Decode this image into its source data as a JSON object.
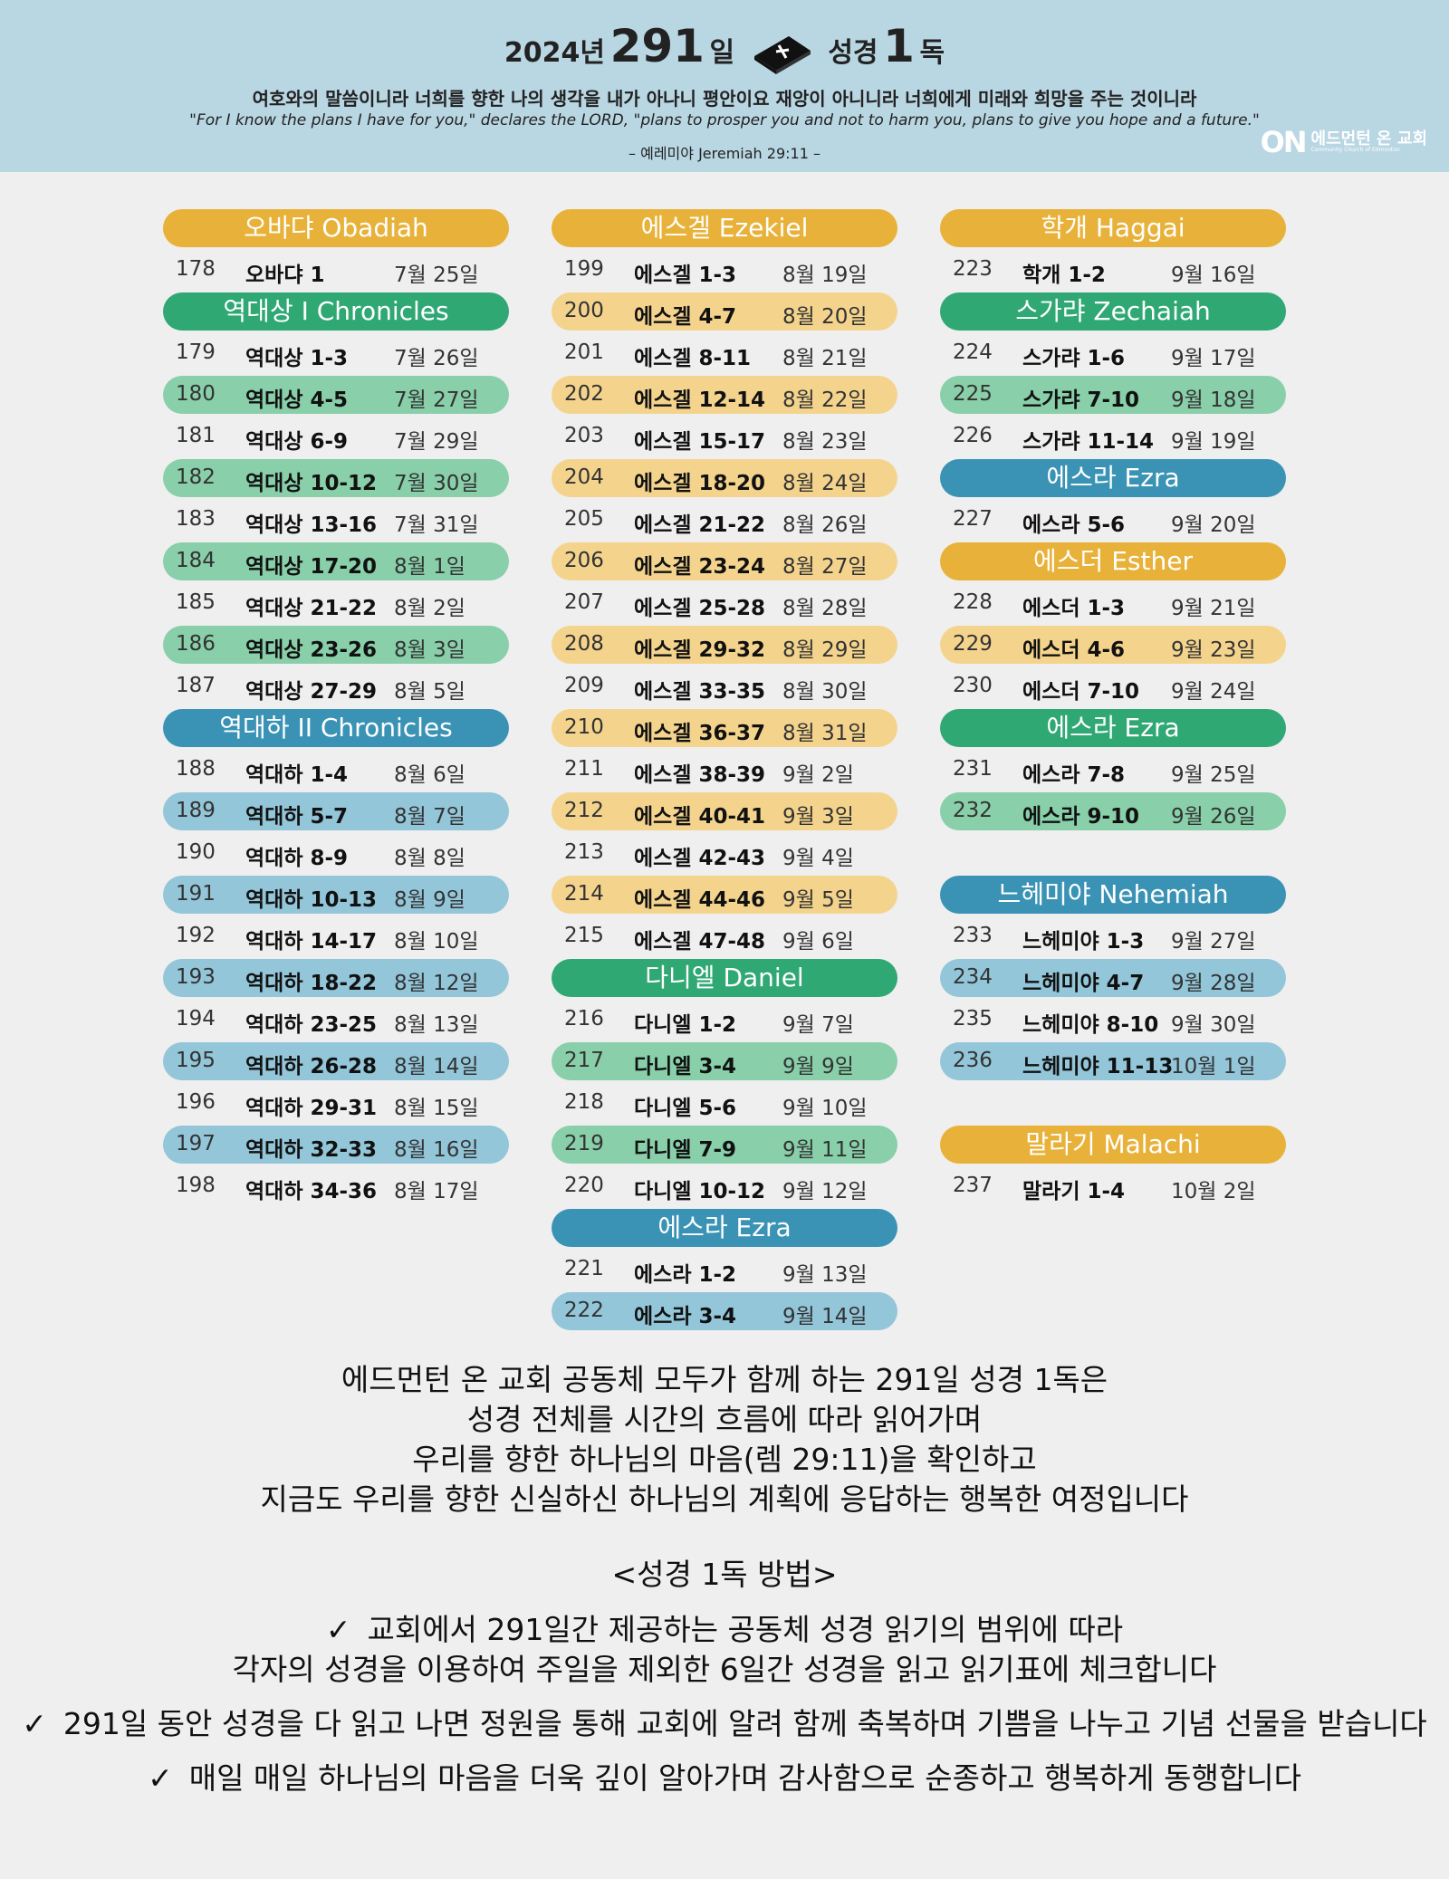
{
  "header": {
    "title_year": "2024년",
    "title_days": "291",
    "title_day_unit": "일",
    "title_bible": "성경",
    "title_one": "1",
    "title_read": "독",
    "verse_ko": "여호와의 말씀이니라 너희를 향한 나의 생각을 내가 아나니 평안이요 재앙이 아니니라 너희에게 미래와 희망을 주는 것이니라",
    "verse_en": "\"For I know the plans I have for you,\" declares the LORD, \"plans to prosper you and not to harm you, plans to give you hope and a future.\"",
    "verse_ref": "– 예레미야 Jeremiah 29:11 –",
    "logo_mark": "ON",
    "logo_ko": "에드먼턴 온 교회",
    "logo_en": "Community Church of Edmonton"
  },
  "colors": {
    "yellow": "#e8b23a",
    "yellow_light": "#f4d48d",
    "green": "#2fa874",
    "green_light": "#88cfaa",
    "blue": "#3a93b5",
    "blue_light": "#93c6d9",
    "header_bg": "#b9d6e3",
    "page_bg": "#efefef"
  },
  "columns": [
    {
      "rows": [
        {
          "type": "book",
          "name": "오바댜 Obadiah",
          "color": "yellow"
        },
        {
          "type": "entry",
          "num": "178",
          "range": "오바댜 1",
          "date": "7월 25일",
          "shade": ""
        },
        {
          "type": "book",
          "name": "역대상  I Chronicles",
          "color": "green"
        },
        {
          "type": "entry",
          "num": "179",
          "range": "역대상 1-3",
          "date": "7월 26일",
          "shade": ""
        },
        {
          "type": "entry",
          "num": "180",
          "range": "역대상 4-5",
          "date": "7월 27일",
          "shade": "green"
        },
        {
          "type": "entry",
          "num": "181",
          "range": "역대상 6-9",
          "date": "7월 29일",
          "shade": ""
        },
        {
          "type": "entry",
          "num": "182",
          "range": "역대상 10-12",
          "date": "7월 30일",
          "shade": "green"
        },
        {
          "type": "entry",
          "num": "183",
          "range": "역대상 13-16",
          "date": "7월 31일",
          "shade": ""
        },
        {
          "type": "entry",
          "num": "184",
          "range": "역대상 17-20",
          "date": "8월 1일",
          "shade": "green"
        },
        {
          "type": "entry",
          "num": "185",
          "range": "역대상 21-22",
          "date": "8월 2일",
          "shade": ""
        },
        {
          "type": "entry",
          "num": "186",
          "range": "역대상 23-26",
          "date": "8월 3일",
          "shade": "green"
        },
        {
          "type": "entry",
          "num": "187",
          "range": "역대상 27-29",
          "date": "8월 5일",
          "shade": ""
        },
        {
          "type": "book",
          "name": "역대하  II Chronicles",
          "color": "blue"
        },
        {
          "type": "entry",
          "num": "188",
          "range": "역대하 1-4",
          "date": "8월 6일",
          "shade": ""
        },
        {
          "type": "entry",
          "num": "189",
          "range": "역대하 5-7",
          "date": "8월 7일",
          "shade": "blue"
        },
        {
          "type": "entry",
          "num": "190",
          "range": "역대하 8-9",
          "date": "8월 8일",
          "shade": ""
        },
        {
          "type": "entry",
          "num": "191",
          "range": "역대하 10-13",
          "date": "8월 9일",
          "shade": "blue"
        },
        {
          "type": "entry",
          "num": "192",
          "range": "역대하 14-17",
          "date": "8월 10일",
          "shade": ""
        },
        {
          "type": "entry",
          "num": "193",
          "range": "역대하 18-22",
          "date": "8월 12일",
          "shade": "blue"
        },
        {
          "type": "entry",
          "num": "194",
          "range": "역대하 23-25",
          "date": "8월 13일",
          "shade": ""
        },
        {
          "type": "entry",
          "num": "195",
          "range": "역대하 26-28",
          "date": "8월 14일",
          "shade": "blue"
        },
        {
          "type": "entry",
          "num": "196",
          "range": "역대하 29-31",
          "date": "8월 15일",
          "shade": ""
        },
        {
          "type": "entry",
          "num": "197",
          "range": "역대하 32-33",
          "date": "8월 16일",
          "shade": "blue"
        },
        {
          "type": "entry",
          "num": "198",
          "range": "역대하 34-36",
          "date": "8월 17일",
          "shade": ""
        }
      ]
    },
    {
      "rows": [
        {
          "type": "book",
          "name": "에스겔 Ezekiel",
          "color": "yellow"
        },
        {
          "type": "entry",
          "num": "199",
          "range": "에스겔 1-3",
          "date": "8월 19일",
          "shade": ""
        },
        {
          "type": "entry",
          "num": "200",
          "range": "에스겔 4-7",
          "date": "8월 20일",
          "shade": "yellow"
        },
        {
          "type": "entry",
          "num": "201",
          "range": "에스겔 8-11",
          "date": "8월 21일",
          "shade": ""
        },
        {
          "type": "entry",
          "num": "202",
          "range": "에스겔 12-14",
          "date": "8월 22일",
          "shade": "yellow"
        },
        {
          "type": "entry",
          "num": "203",
          "range": "에스겔 15-17",
          "date": "8월 23일",
          "shade": ""
        },
        {
          "type": "entry",
          "num": "204",
          "range": "에스겔 18-20",
          "date": "8월 24일",
          "shade": "yellow"
        },
        {
          "type": "entry",
          "num": "205",
          "range": "에스겔 21-22",
          "date": "8월 26일",
          "shade": ""
        },
        {
          "type": "entry",
          "num": "206",
          "range": "에스겔 23-24",
          "date": "8월 27일",
          "shade": "yellow"
        },
        {
          "type": "entry",
          "num": "207",
          "range": "에스겔 25-28",
          "date": "8월 28일",
          "shade": ""
        },
        {
          "type": "entry",
          "num": "208",
          "range": "에스겔 29-32",
          "date": "8월 29일",
          "shade": "yellow"
        },
        {
          "type": "entry",
          "num": "209",
          "range": "에스겔 33-35",
          "date": "8월 30일",
          "shade": ""
        },
        {
          "type": "entry",
          "num": "210",
          "range": "에스겔 36-37",
          "date": "8월 31일",
          "shade": "yellow"
        },
        {
          "type": "entry",
          "num": "211",
          "range": "에스겔 38-39",
          "date": "9월 2일",
          "shade": ""
        },
        {
          "type": "entry",
          "num": "212",
          "range": "에스겔 40-41",
          "date": "9월 3일",
          "shade": "yellow"
        },
        {
          "type": "entry",
          "num": "213",
          "range": "에스겔 42-43",
          "date": "9월 4일",
          "shade": ""
        },
        {
          "type": "entry",
          "num": "214",
          "range": "에스겔 44-46",
          "date": "9월 5일",
          "shade": "yellow"
        },
        {
          "type": "entry",
          "num": "215",
          "range": "에스겔 47-48",
          "date": "9월 6일",
          "shade": ""
        },
        {
          "type": "book",
          "name": "다니엘 Daniel",
          "color": "green"
        },
        {
          "type": "entry",
          "num": "216",
          "range": "다니엘 1-2",
          "date": "9월 7일",
          "shade": ""
        },
        {
          "type": "entry",
          "num": "217",
          "range": "다니엘 3-4",
          "date": "9월 9일",
          "shade": "green"
        },
        {
          "type": "entry",
          "num": "218",
          "range": "다니엘 5-6",
          "date": "9월 10일",
          "shade": ""
        },
        {
          "type": "entry",
          "num": "219",
          "range": "다니엘 7-9",
          "date": "9월 11일",
          "shade": "green"
        },
        {
          "type": "entry",
          "num": "220",
          "range": "다니엘 10-12",
          "date": "9월 12일",
          "shade": ""
        },
        {
          "type": "book",
          "name": "에스라 Ezra",
          "color": "blue"
        },
        {
          "type": "entry",
          "num": "221",
          "range": "에스라 1-2",
          "date": "9월 13일",
          "shade": ""
        },
        {
          "type": "entry",
          "num": "222",
          "range": "에스라 3-4",
          "date": "9월 14일",
          "shade": "blue"
        }
      ]
    },
    {
      "rows": [
        {
          "type": "book",
          "name": "학개 Haggai",
          "color": "yellow"
        },
        {
          "type": "entry",
          "num": "223",
          "range": "학개 1-2",
          "date": "9월 16일",
          "shade": ""
        },
        {
          "type": "book",
          "name": "스가랴 Zechaiah",
          "color": "green"
        },
        {
          "type": "entry",
          "num": "224",
          "range": "스가랴 1-6",
          "date": "9월 17일",
          "shade": ""
        },
        {
          "type": "entry",
          "num": "225",
          "range": "스가랴 7-10",
          "date": "9월 18일",
          "shade": "green"
        },
        {
          "type": "entry",
          "num": "226",
          "range": "스가랴 11-14",
          "date": "9월 19일",
          "shade": ""
        },
        {
          "type": "book",
          "name": "에스라 Ezra",
          "color": "blue"
        },
        {
          "type": "entry",
          "num": "227",
          "range": "에스라 5-6",
          "date": "9월 20일",
          "shade": ""
        },
        {
          "type": "book",
          "name": "에스더 Esther",
          "color": "yellow"
        },
        {
          "type": "entry",
          "num": "228",
          "range": "에스더 1-3",
          "date": "9월 21일",
          "shade": ""
        },
        {
          "type": "entry",
          "num": "229",
          "range": "에스더 4-6",
          "date": "9월 23일",
          "shade": "yellow"
        },
        {
          "type": "entry",
          "num": "230",
          "range": "에스더 7-10",
          "date": "9월 24일",
          "shade": ""
        },
        {
          "type": "book",
          "name": "에스라 Ezra",
          "color": "green"
        },
        {
          "type": "entry",
          "num": "231",
          "range": "에스라 7-8",
          "date": "9월 25일",
          "shade": ""
        },
        {
          "type": "entry",
          "num": "232",
          "range": "에스라 9-10",
          "date": "9월 26일",
          "shade": "green"
        },
        {
          "type": "gap"
        },
        {
          "type": "book",
          "name": "느헤미야 Nehemiah",
          "color": "blue"
        },
        {
          "type": "entry",
          "num": "233",
          "range": "느헤미야 1-3",
          "date": "9월 27일",
          "shade": ""
        },
        {
          "type": "entry",
          "num": "234",
          "range": "느헤미야 4-7",
          "date": "9월 28일",
          "shade": "blue"
        },
        {
          "type": "entry",
          "num": "235",
          "range": "느헤미야 8-10",
          "date": "9월 30일",
          "shade": ""
        },
        {
          "type": "entry",
          "num": "236",
          "range": "느헤미야 11-13",
          "date": "10월 1일",
          "shade": "blue"
        },
        {
          "type": "gap"
        },
        {
          "type": "book",
          "name": "말라기 Malachi",
          "color": "yellow"
        },
        {
          "type": "entry",
          "num": "237",
          "range": "말라기 1-4",
          "date": "10월 2일",
          "shade": ""
        }
      ]
    }
  ],
  "footer": {
    "intro": [
      "에드먼턴 온 교회 공동체 모두가 함께 하는 291일 성경 1독은",
      "성경 전체를 시간의 흐름에 따라 읽어가며",
      "우리를 향한 하나님의 마음(렘 29:11)을 확인하고",
      "지금도 우리를 향한 신실하신 하나님의 계획에 응답하는 행복한 여정입니다"
    ],
    "method_title": "<성경 1독 방법>",
    "check_mark": "✓",
    "checks": [
      {
        "lines": [
          "교회에서 291일간 제공하는 공동체 성경 읽기의 범위에 따라",
          "각자의 성경을 이용하여 주일을 제외한 6일간 성경을 읽고 읽기표에 체크합니다"
        ]
      },
      {
        "lines": [
          "291일 동안 성경을 다 읽고 나면 정원을 통해 교회에 알려 함께 축복하며 기쁨을 나누고 기념 선물을 받습니다"
        ]
      },
      {
        "lines": [
          "매일 매일 하나님의 마음을 더욱 깊이 알아가며 감사함으로 순종하고 행복하게 동행합니다"
        ]
      }
    ]
  }
}
